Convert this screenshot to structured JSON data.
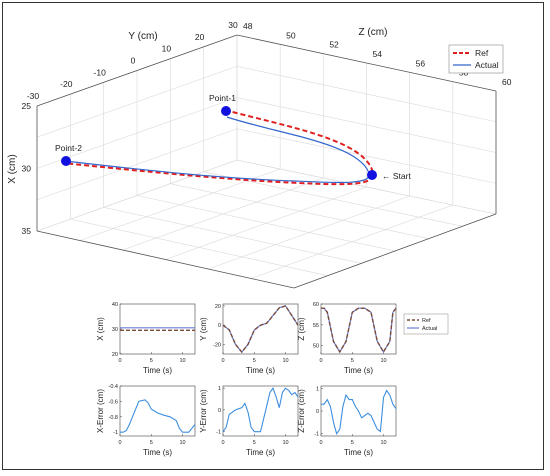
{
  "chart_data": [
    {
      "type": "line",
      "subtype": "3d",
      "axes": {
        "x": {
          "label": "X (cm)",
          "ticks": [
            "25",
            "30",
            "35"
          ],
          "lim": [
            25,
            35
          ]
        },
        "y": {
          "label": "Y (cm)",
          "ticks": [
            "-30",
            "-20",
            "-10",
            "0",
            "10",
            "20",
            "30"
          ],
          "lim": [
            -30,
            30
          ]
        },
        "z": {
          "label": "Z (cm)",
          "ticks": [
            "48",
            "50",
            "52",
            "54",
            "56",
            "58",
            "60"
          ],
          "lim": [
            48,
            60
          ]
        }
      },
      "legend": {
        "position": "top-right",
        "entries": [
          "Ref",
          "Actual"
        ]
      },
      "annotations": [
        "Point-1",
        "Point-2",
        "← Start"
      ],
      "series": [
        {
          "name": "Ref",
          "style": "dashed",
          "color": "#e02020"
        },
        {
          "name": "Actual",
          "style": "solid",
          "color": "#3366cc"
        }
      ],
      "markers": [
        {
          "label": "Point-1",
          "color": "#1010e0"
        },
        {
          "label": "Point-2",
          "color": "#1010e0"
        },
        {
          "label": "Start",
          "color": "#1010e0"
        }
      ],
      "grid": true
    },
    {
      "type": "line",
      "ylabel": "X (cm)",
      "xlabel": "Time (s)",
      "xticks": [
        "0",
        "5",
        "10"
      ],
      "yticks": [
        "20",
        "30",
        "40"
      ],
      "xlim": [
        0,
        12
      ],
      "ylim": [
        20,
        40
      ],
      "series": [
        {
          "name": "Ref",
          "x": [
            0,
            12
          ],
          "y": [
            29.5,
            29.5
          ]
        },
        {
          "name": "Actual",
          "x": [
            0,
            12
          ],
          "y": [
            30.5,
            30.5
          ]
        }
      ]
    },
    {
      "type": "line",
      "ylabel": "Y (cm)",
      "xlabel": "Time (s)",
      "xticks": [
        "0",
        "5",
        "10"
      ],
      "yticks": [
        "-20",
        "0",
        "20"
      ],
      "xlim": [
        0,
        12
      ],
      "ylim": [
        -30,
        22
      ],
      "series": [
        {
          "name": "Ref",
          "x": [
            0,
            1,
            2,
            3,
            4,
            5,
            6,
            7,
            8,
            9,
            10,
            11,
            12
          ],
          "y": [
            0,
            -5,
            -20,
            -28,
            -20,
            -5,
            0,
            2,
            10,
            18,
            20,
            10,
            0
          ]
        },
        {
          "name": "Actual",
          "x": [
            0,
            1,
            2,
            3,
            4,
            5,
            6,
            7,
            8,
            9,
            10,
            11,
            12
          ],
          "y": [
            0,
            -5,
            -20,
            -28,
            -20,
            -5,
            0,
            2,
            10,
            18,
            20,
            10,
            0
          ]
        }
      ]
    },
    {
      "type": "line",
      "ylabel": "Z (cm)",
      "xlabel": "Time (s)",
      "xticks": [
        "0",
        "5",
        "10"
      ],
      "yticks": [
        "50",
        "55",
        "60"
      ],
      "xlim": [
        0,
        12
      ],
      "ylim": [
        48,
        60
      ],
      "legend": {
        "position": "right",
        "entries": [
          "Ref",
          "Actual"
        ]
      },
      "series": [
        {
          "name": "Ref",
          "x": [
            0,
            0.5,
            1,
            2,
            3,
            4,
            5,
            6,
            6.5,
            7,
            8,
            9,
            10,
            11,
            11.5,
            12
          ],
          "y": [
            59,
            59,
            58,
            51,
            48.5,
            51,
            58,
            59,
            59,
            59,
            58,
            51,
            48.5,
            51,
            58,
            59
          ]
        },
        {
          "name": "Actual",
          "x": [
            0,
            0.5,
            1,
            2,
            3,
            4,
            5,
            6,
            6.5,
            7,
            8,
            9,
            10,
            11,
            11.5,
            12
          ],
          "y": [
            59,
            59,
            58,
            51,
            48.5,
            51,
            58,
            59,
            59,
            59,
            58,
            51,
            48.5,
            51,
            58,
            59
          ]
        }
      ]
    },
    {
      "type": "line",
      "ylabel": "X-Error (cm)",
      "xlabel": "Time (s)",
      "xticks": [
        "0",
        "5",
        "10"
      ],
      "yticks": [
        "-0.4",
        "-0.6",
        "-0.8",
        "-1"
      ],
      "xlim": [
        0,
        12
      ],
      "ylim": [
        -1.05,
        -0.4
      ],
      "series": [
        {
          "name": "Error",
          "x": [
            0,
            0.5,
            1,
            1.5,
            2,
            3,
            4,
            4.5,
            5,
            6,
            7,
            8,
            9,
            9.5,
            10,
            11,
            11.5,
            12
          ],
          "y": [
            -1,
            -1,
            -0.98,
            -0.9,
            -0.8,
            -0.6,
            -0.58,
            -0.62,
            -0.7,
            -0.75,
            -0.78,
            -0.8,
            -0.85,
            -0.95,
            -1,
            -1,
            -0.95,
            -0.9
          ]
        }
      ]
    },
    {
      "type": "line",
      "ylabel": "Y-Error (cm)",
      "xlabel": "Time (s)",
      "xticks": [
        "0",
        "5",
        "10"
      ],
      "yticks": [
        "-1",
        "0",
        "1"
      ],
      "xlim": [
        0,
        12
      ],
      "ylim": [
        -1.2,
        1.1
      ],
      "series": [
        {
          "name": "Error",
          "x": [
            0,
            0.5,
            1,
            2,
            3,
            3.5,
            4,
            4.5,
            5,
            6,
            7,
            7.5,
            8,
            8.5,
            9,
            9.5,
            10,
            10.5,
            11,
            11.5,
            12
          ],
          "y": [
            -1,
            -0.8,
            -0.2,
            0,
            0.1,
            0.3,
            -0.1,
            -0.8,
            -1,
            -1,
            0.2,
            0.8,
            1,
            0.6,
            0.1,
            0.8,
            1,
            0.9,
            0.7,
            0.8,
            0.6
          ]
        }
      ]
    },
    {
      "type": "line",
      "ylabel": "Z-Error (cm)",
      "xlabel": "Time (s)",
      "xticks": [
        "0",
        "5",
        "10"
      ],
      "yticks": [
        "-1",
        "0",
        "1"
      ],
      "xlim": [
        0,
        12
      ],
      "ylim": [
        -1.1,
        1.1
      ],
      "series": [
        {
          "name": "Error",
          "x": [
            0,
            0.5,
            1,
            1.5,
            2,
            2.5,
            3,
            3.5,
            4,
            4.5,
            5,
            5.5,
            6,
            6.5,
            7,
            7.5,
            8,
            8.5,
            9,
            9.5,
            10,
            10.5,
            11,
            11.5,
            12
          ],
          "y": [
            0.3,
            0.3,
            0.5,
            0.2,
            -0.5,
            -1,
            -0.8,
            0.2,
            0.7,
            0.5,
            0.5,
            0.2,
            0,
            -0.3,
            -0.2,
            -0.1,
            -0.2,
            -0.5,
            -0.8,
            -0.9,
            0.6,
            0.9,
            0.7,
            0.3,
            0.1
          ]
        }
      ]
    }
  ]
}
